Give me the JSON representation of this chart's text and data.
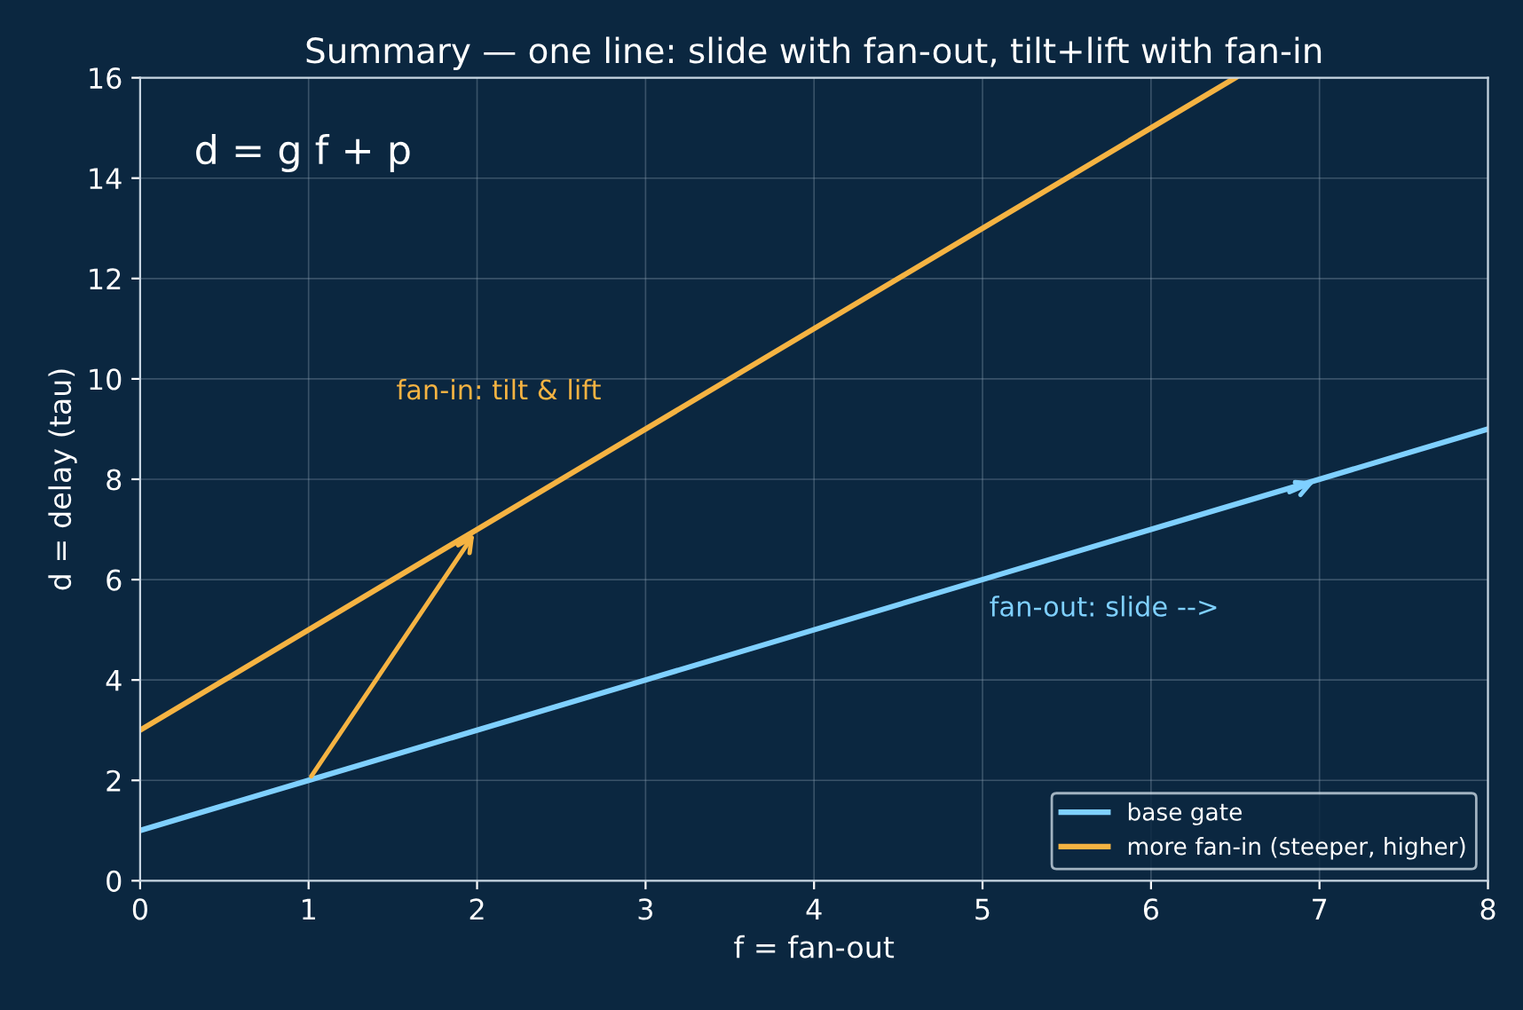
{
  "chart_data": {
    "type": "line",
    "title": "Summary — one line: slide with fan-out, tilt+lift with fan-in",
    "xlabel": "f = fan-out",
    "ylabel": "d = delay (tau)",
    "series": [
      {
        "name": "base gate",
        "color": "#7fd0ff",
        "x": [
          0,
          1,
          7,
          8
        ],
        "values": [
          1,
          2,
          8,
          9
        ]
      },
      {
        "name": "more fan-in (steeper, higher)",
        "color": "#f5b342",
        "x": [
          0,
          2,
          6.5
        ],
        "values": [
          3,
          7,
          16
        ]
      }
    ],
    "annotations": [
      "d = g f + p",
      "fan-in: tilt & lift",
      "fan-out: slide -->"
    ],
    "xlim": [
      0,
      8
    ],
    "ylim": [
      0,
      16
    ],
    "xticks": [
      0,
      1,
      2,
      3,
      4,
      5,
      6,
      7,
      8
    ],
    "yticks": [
      0,
      2,
      4,
      6,
      8,
      10,
      12,
      14,
      16
    ],
    "grid": true,
    "legend": "bottom right",
    "marker": "none",
    "line_style": "solid"
  }
}
